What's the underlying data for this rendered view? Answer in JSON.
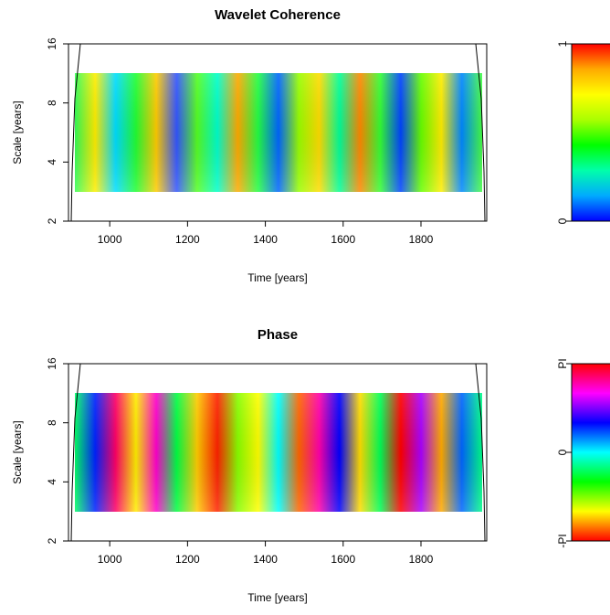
{
  "chart_data": [
    {
      "type": "heatmap",
      "title": "Wavelet Coherence",
      "xlabel": "Time [years]",
      "ylabel": "Scale [years]",
      "xlim": [
        894,
        1969
      ],
      "xticks": [
        1000,
        1200,
        1400,
        1600,
        1800
      ],
      "ylim": [
        2,
        16
      ],
      "yticks": [
        2,
        4,
        8,
        16
      ],
      "ylog": true,
      "colorbar": {
        "lim": [
          0,
          1
        ],
        "ticks": [
          0,
          1
        ],
        "colors": [
          "#0000ff",
          "#00aaff",
          "#00ffaa",
          "#00ff00",
          "#aaff00",
          "#ffff00",
          "#ffaa00",
          "#ff0000"
        ]
      }
    },
    {
      "type": "heatmap",
      "title": "Phase",
      "xlabel": "Time [years]",
      "ylabel": "Scale [years]",
      "xlim": [
        894,
        1969
      ],
      "xticks": [
        1000,
        1200,
        1400,
        1600,
        1800
      ],
      "ylim": [
        2,
        16
      ],
      "yticks": [
        2,
        4,
        8,
        16
      ],
      "ylog": true,
      "colorbar": {
        "lim": [
          -3.14159,
          3.14159
        ],
        "ticks": [
          {
            "value": -3.14159,
            "label": "-PI"
          },
          0,
          {
            "value": 3.14159,
            "label": "PI"
          }
        ],
        "colors": [
          "#ff0000",
          "#ffff00",
          "#00ff00",
          "#00ffff",
          "#0000ff",
          "#ff00ff",
          "#ff0000"
        ]
      }
    }
  ]
}
